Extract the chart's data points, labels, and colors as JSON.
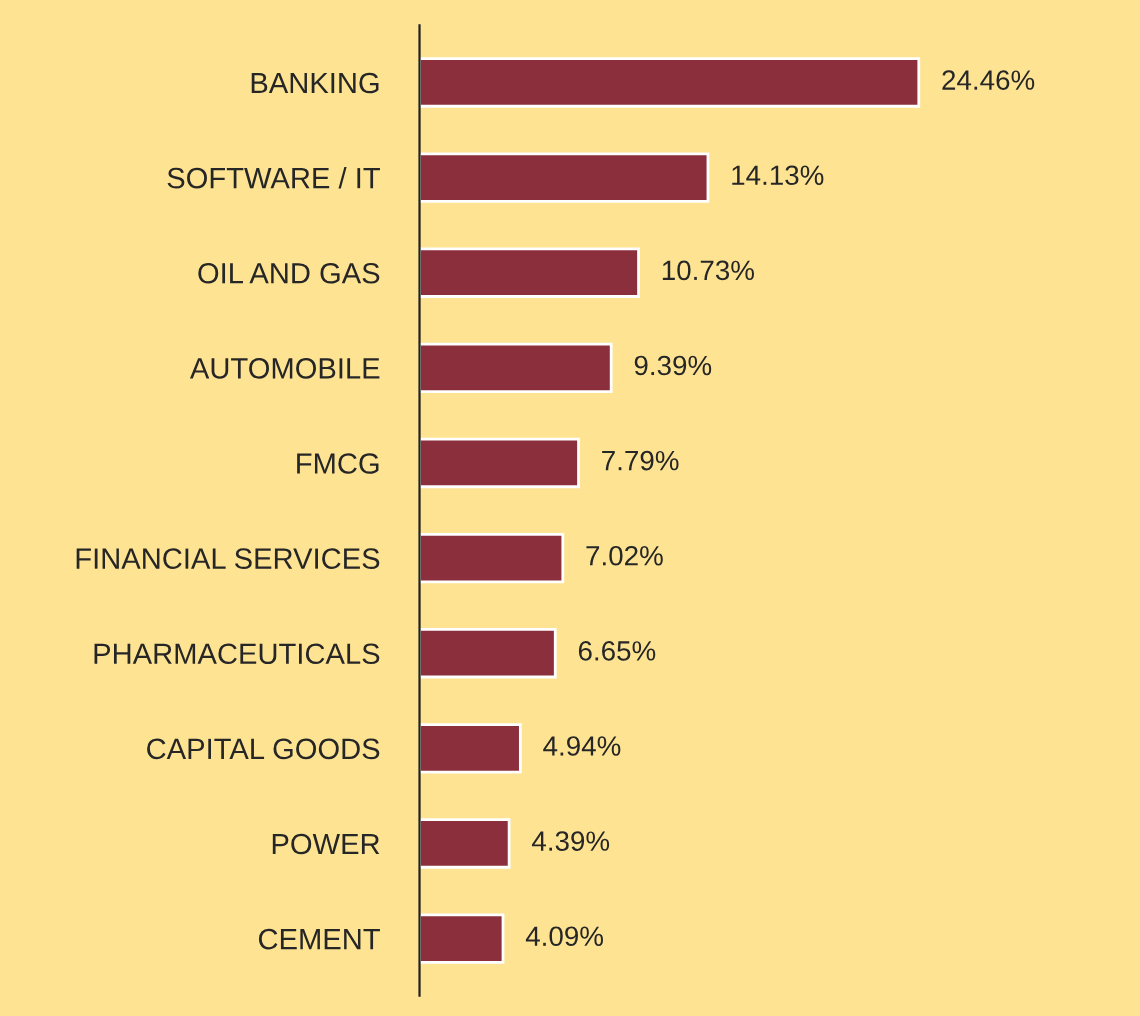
{
  "chart_data": {
    "type": "bar",
    "orientation": "horizontal",
    "categories": [
      "BANKING",
      "SOFTWARE / IT",
      "OIL AND GAS",
      "AUTOMOBILE",
      "FMCG",
      "FINANCIAL SERVICES",
      "PHARMACEUTICALS",
      "CAPITAL GOODS",
      "POWER",
      "CEMENT"
    ],
    "values": [
      24.46,
      14.13,
      10.73,
      9.39,
      7.79,
      7.02,
      6.65,
      4.94,
      4.39,
      4.09
    ],
    "value_labels": [
      "24.46%",
      "14.13%",
      "10.73%",
      "9.39%",
      "7.79%",
      "7.02%",
      "6.65%",
      "4.94%",
      "4.39%",
      "4.09%"
    ],
    "color": "#8b2f3c",
    "grid": false,
    "legend": false,
    "tick_labels": "y"
  }
}
